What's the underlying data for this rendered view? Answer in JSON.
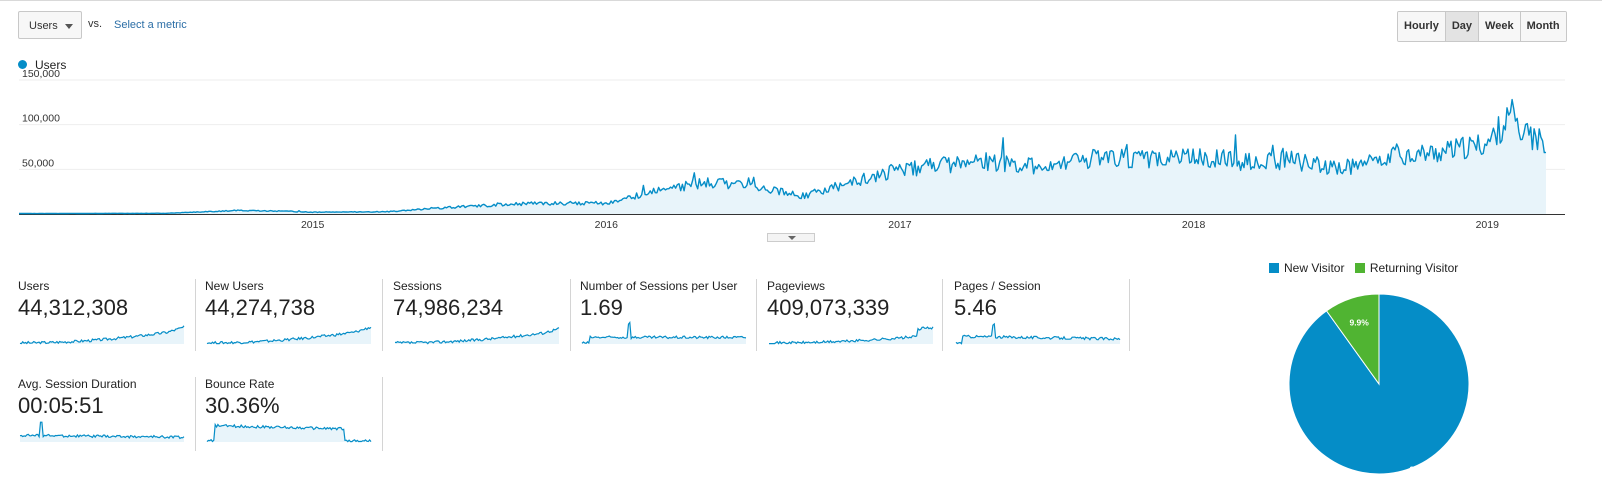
{
  "toolbar": {
    "metric_dropdown": "Users",
    "vs_label": "vs.",
    "select_metric_link": "Select a metric",
    "granularity": [
      "Hourly",
      "Day",
      "Week",
      "Month"
    ],
    "active_granularity": "Day"
  },
  "chart_data": [
    {
      "type": "area",
      "legend": [
        "Users"
      ],
      "y_ticks": [
        "150,000",
        "100,000",
        "50,000"
      ],
      "x_ticks": [
        "2015",
        "2016",
        "2017",
        "2018",
        "2019"
      ],
      "ylim": [
        0,
        150000
      ],
      "grid": true,
      "legend_placement": "top-left",
      "color": "#058dc7",
      "series": [
        {
          "name": "Users",
          "x": [
            "2014-01",
            "2014-07",
            "2014-10",
            "2014-12",
            "2015-01",
            "2015-04",
            "2015-07",
            "2015-10",
            "2016-01",
            "2016-03",
            "2016-05",
            "2016-07",
            "2016-09",
            "2016-11",
            "2017-01",
            "2017-03",
            "2017-05",
            "2017-07",
            "2017-09",
            "2017-11",
            "2018-01",
            "2018-03",
            "2018-05",
            "2018-07",
            "2018-09",
            "2018-11",
            "2019-01",
            "2019-02",
            "2019-03"
          ],
          "values": [
            500,
            800,
            4000,
            3000,
            2000,
            2500,
            8000,
            12000,
            12000,
            25000,
            35000,
            33000,
            20000,
            35000,
            50000,
            55000,
            58000,
            52000,
            63000,
            62000,
            65000,
            58000,
            60000,
            50000,
            65000,
            68000,
            78000,
            110000,
            82000
          ]
        }
      ]
    },
    {
      "type": "pie",
      "legend": [
        "New Visitor",
        "Returning Visitor"
      ],
      "slices": [
        {
          "name": "New Visitor",
          "value": 90.1,
          "label": "90.1%",
          "color": "#058dc7"
        },
        {
          "name": "Returning Visitor",
          "value": 9.9,
          "label": "9.9%",
          "color": "#50b432"
        }
      ]
    }
  ],
  "scorecards": [
    {
      "name": "Users",
      "value": "44,312,308"
    },
    {
      "name": "New Users",
      "value": "44,274,738"
    },
    {
      "name": "Sessions",
      "value": "74,986,234"
    },
    {
      "name": "Number of Sessions per User",
      "value": "1.69"
    },
    {
      "name": "Pageviews",
      "value": "409,073,339"
    },
    {
      "name": "Pages / Session",
      "value": "5.46"
    },
    {
      "name": "Avg. Session Duration",
      "value": "00:05:51"
    },
    {
      "name": "Bounce Rate",
      "value": "30.36%"
    }
  ],
  "pie_legend": {
    "new": "New Visitor",
    "returning": "Returning Visitor"
  },
  "pie_labels": {
    "new": "90.1%",
    "returning": "9.9%"
  }
}
